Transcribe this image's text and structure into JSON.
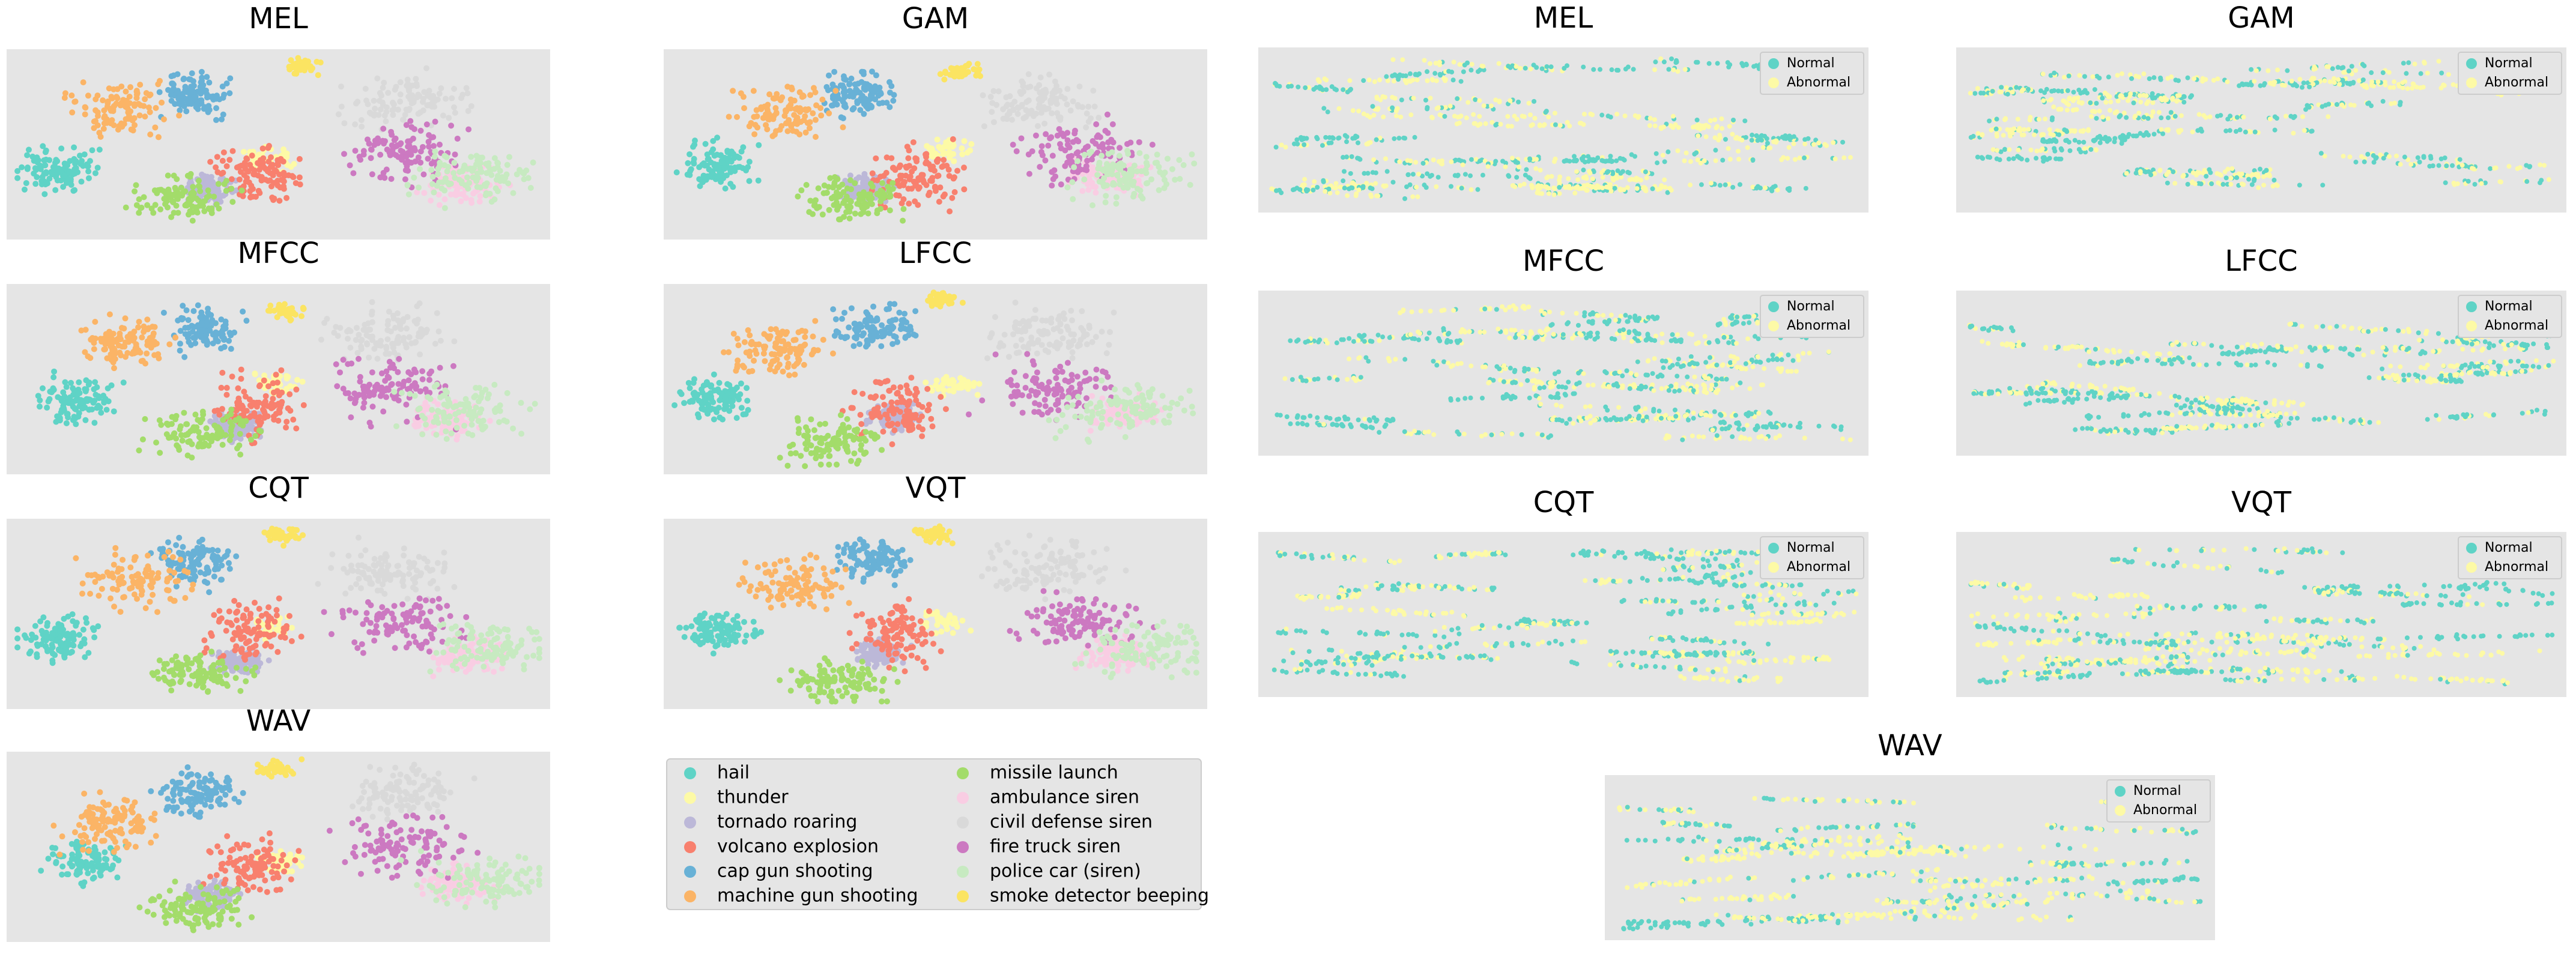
{
  "panels": [
    {
      "title": "MEL"
    },
    {
      "title": "GAM"
    },
    {
      "title": "MFCC"
    },
    {
      "title": "LFCC"
    },
    {
      "title": "CQT"
    },
    {
      "title": "VQT"
    },
    {
      "title": "WAV"
    }
  ],
  "legend": {
    "items": [
      {
        "label": "hail",
        "color": "#5fd3c6"
      },
      {
        "label": "thunder",
        "color": "#fdfaa6"
      },
      {
        "label": "tornado roaring",
        "color": "#bcb8d8"
      },
      {
        "label": "volcano explosion",
        "color": "#f8806e"
      },
      {
        "label": "cap gun shooting",
        "color": "#68b1d6"
      },
      {
        "label": "machine gun shooting",
        "color": "#fbb466"
      },
      {
        "label": "missile launch",
        "color": "#a3dc6a"
      },
      {
        "label": "ambulance siren",
        "color": "#f9cde3"
      },
      {
        "label": "civil defense siren",
        "color": "#d9d9d9"
      },
      {
        "label": "fire truck siren",
        "color": "#cc79c1"
      },
      {
        "label": "police car (siren)",
        "color": "#c7eac1"
      },
      {
        "label": "smoke detector beeping",
        "color": "#fbe462"
      }
    ]
  },
  "anomaly_panels": [
    {
      "title": "MEL"
    },
    {
      "title": "GAM"
    },
    {
      "title": "MFCC"
    },
    {
      "title": "LFCC"
    },
    {
      "title": "CQT"
    },
    {
      "title": "VQT"
    },
    {
      "title": "WAV"
    }
  ],
  "anomaly_legend": [
    {
      "label": "Normal",
      "color": "#5fd3c6"
    },
    {
      "label": "Abnormal",
      "color": "#fdfaa6"
    }
  ]
}
